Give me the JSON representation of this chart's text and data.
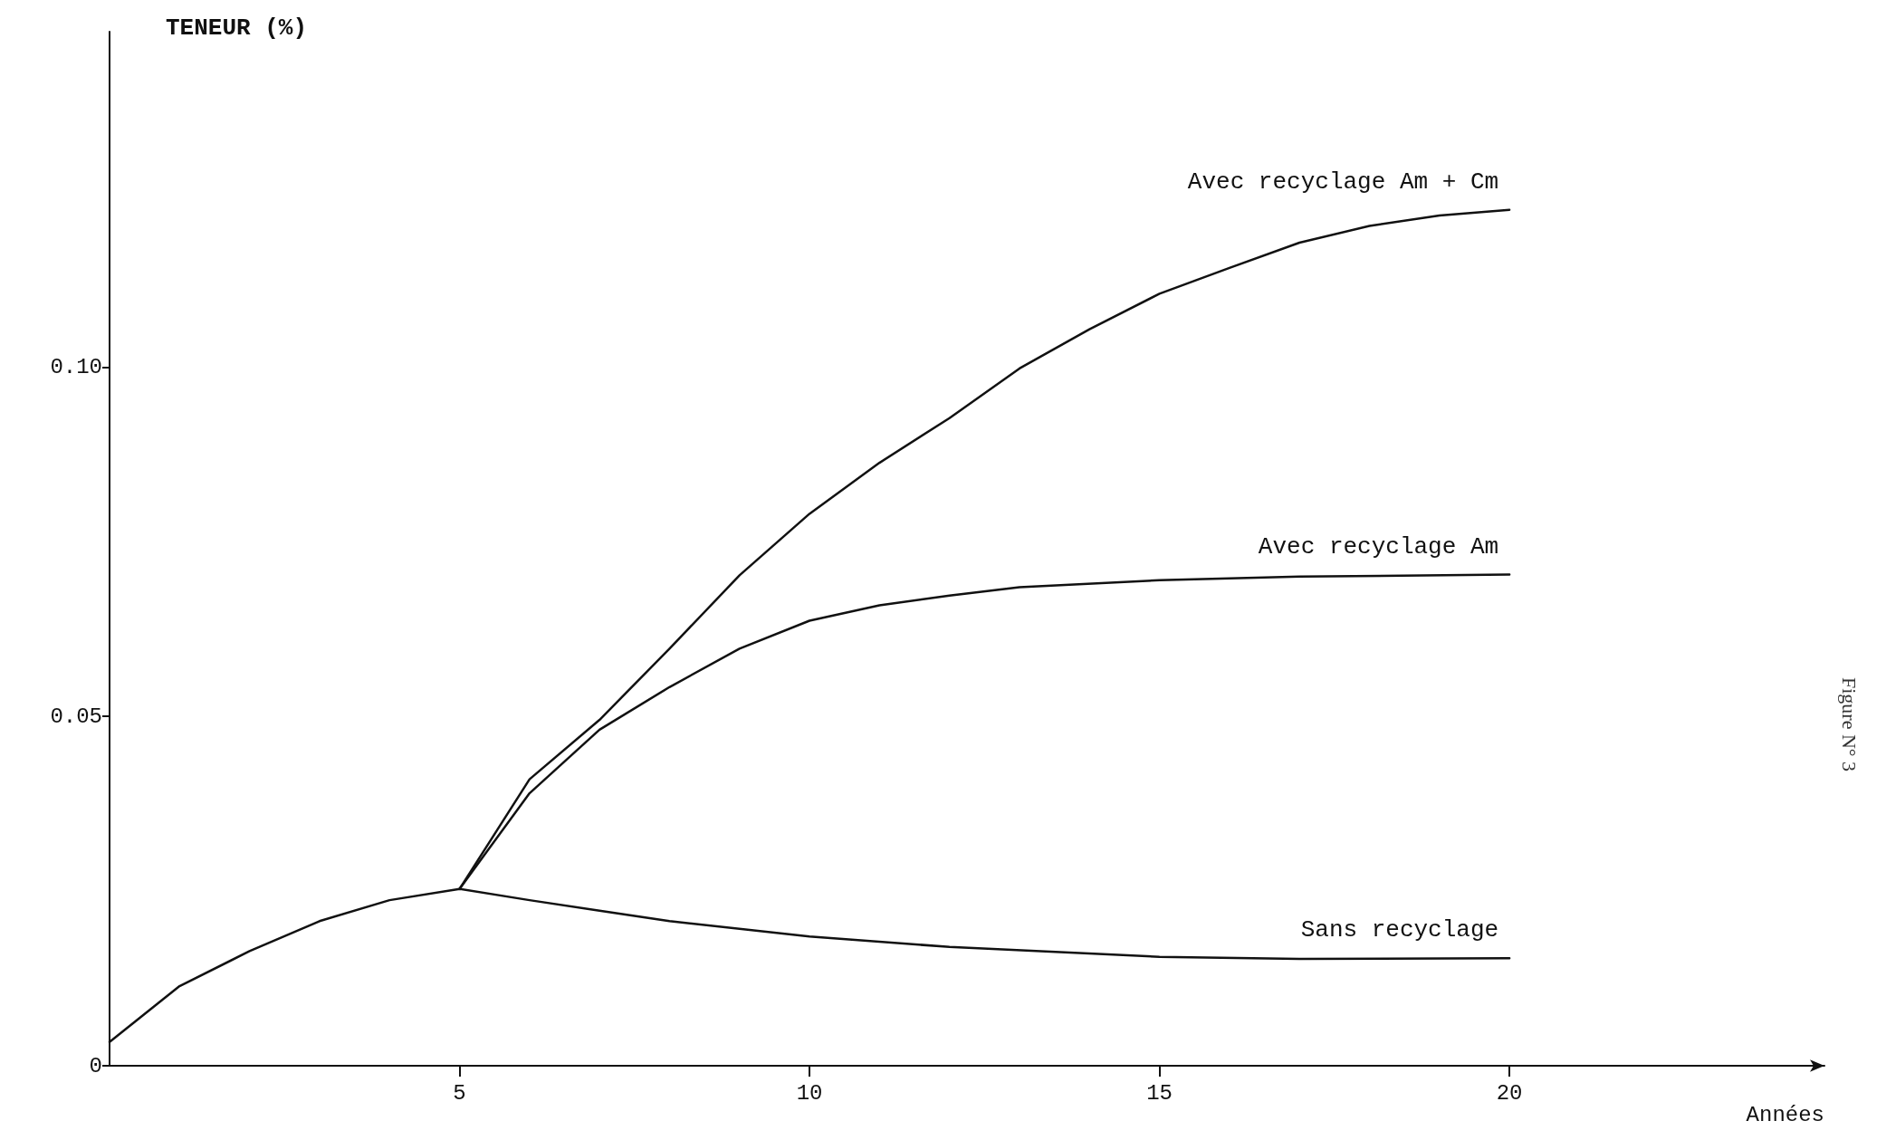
{
  "chart_data": {
    "type": "line",
    "xlabel": "Années",
    "ylabel": "TENEUR (%)",
    "annotations": [
      "Figure N° 3"
    ],
    "xlim": [
      0,
      24.5
    ],
    "xticks": [
      5,
      10,
      15,
      20
    ],
    "ylim": [
      0,
      0.148
    ],
    "yticks": [
      0,
      0.05,
      {
        "value": 0.1,
        "label": "0.10"
      }
    ],
    "grid": false,
    "legend": false,
    "marker": "none",
    "line_style": "solid",
    "series": [
      {
        "name": "Sans recyclage",
        "color": "#111111",
        "x": [
          0,
          1,
          2,
          3,
          4,
          5,
          6,
          7,
          8,
          10,
          12,
          15,
          17,
          20
        ],
        "values": [
          0.0034,
          0.0114,
          0.0164,
          0.0207,
          0.0237,
          0.0253,
          0.0237,
          0.0222,
          0.0207,
          0.0185,
          0.017,
          0.0156,
          0.0153,
          0.0154
        ]
      },
      {
        "name": "Avec recyclage Am",
        "color": "#111111",
        "x": [
          5,
          6,
          7,
          8,
          9,
          10,
          11,
          12,
          13,
          15,
          17,
          20
        ],
        "values": [
          0.0253,
          0.039,
          0.0481,
          0.0542,
          0.0597,
          0.0637,
          0.0659,
          0.0673,
          0.0685,
          0.0695,
          0.07,
          0.0703
        ]
      },
      {
        "name": "Avec recyclage Am + Cm",
        "color": "#111111",
        "x": [
          5,
          6,
          7,
          8,
          9,
          10,
          11,
          12,
          13,
          14,
          15,
          16,
          17,
          18,
          19,
          20
        ],
        "values": [
          0.0253,
          0.041,
          0.0495,
          0.0597,
          0.0702,
          0.079,
          0.0863,
          0.0927,
          0.0998,
          0.1054,
          0.1105,
          0.1142,
          0.1178,
          0.1202,
          0.1217,
          0.1225
        ]
      }
    ]
  }
}
